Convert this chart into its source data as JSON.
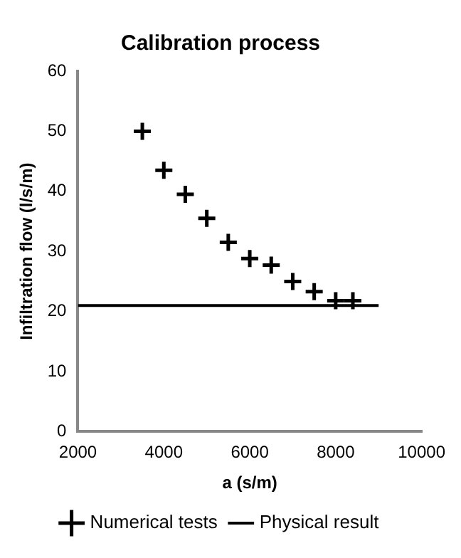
{
  "chart_data": {
    "type": "scatter",
    "title": "Calibration process",
    "xlabel": "a (s/m)",
    "ylabel": "Infiltration flow (l/s/m)",
    "xlim": [
      2000,
      10000
    ],
    "xticks": [
      2000,
      4000,
      6000,
      8000,
      10000
    ],
    "ylim": [
      0,
      60
    ],
    "yticks": [
      0,
      10,
      20,
      30,
      40,
      50,
      60
    ],
    "grid": false,
    "legend": "bottom",
    "series": [
      {
        "name": "Numerical tests",
        "marker": "cross",
        "color": "#000000",
        "x": [
          3500,
          4000,
          4500,
          5000,
          5500,
          6000,
          6500,
          7000,
          7500,
          8000,
          8400
        ],
        "values": [
          50,
          43.5,
          39.5,
          35.5,
          31.5,
          28.8,
          27.7,
          25,
          23.3,
          21.8,
          21.8
        ]
      },
      {
        "name": "Physical result",
        "type": "line",
        "color": "#000000",
        "x": [
          2000,
          9000
        ],
        "values": [
          21,
          21
        ]
      }
    ]
  }
}
